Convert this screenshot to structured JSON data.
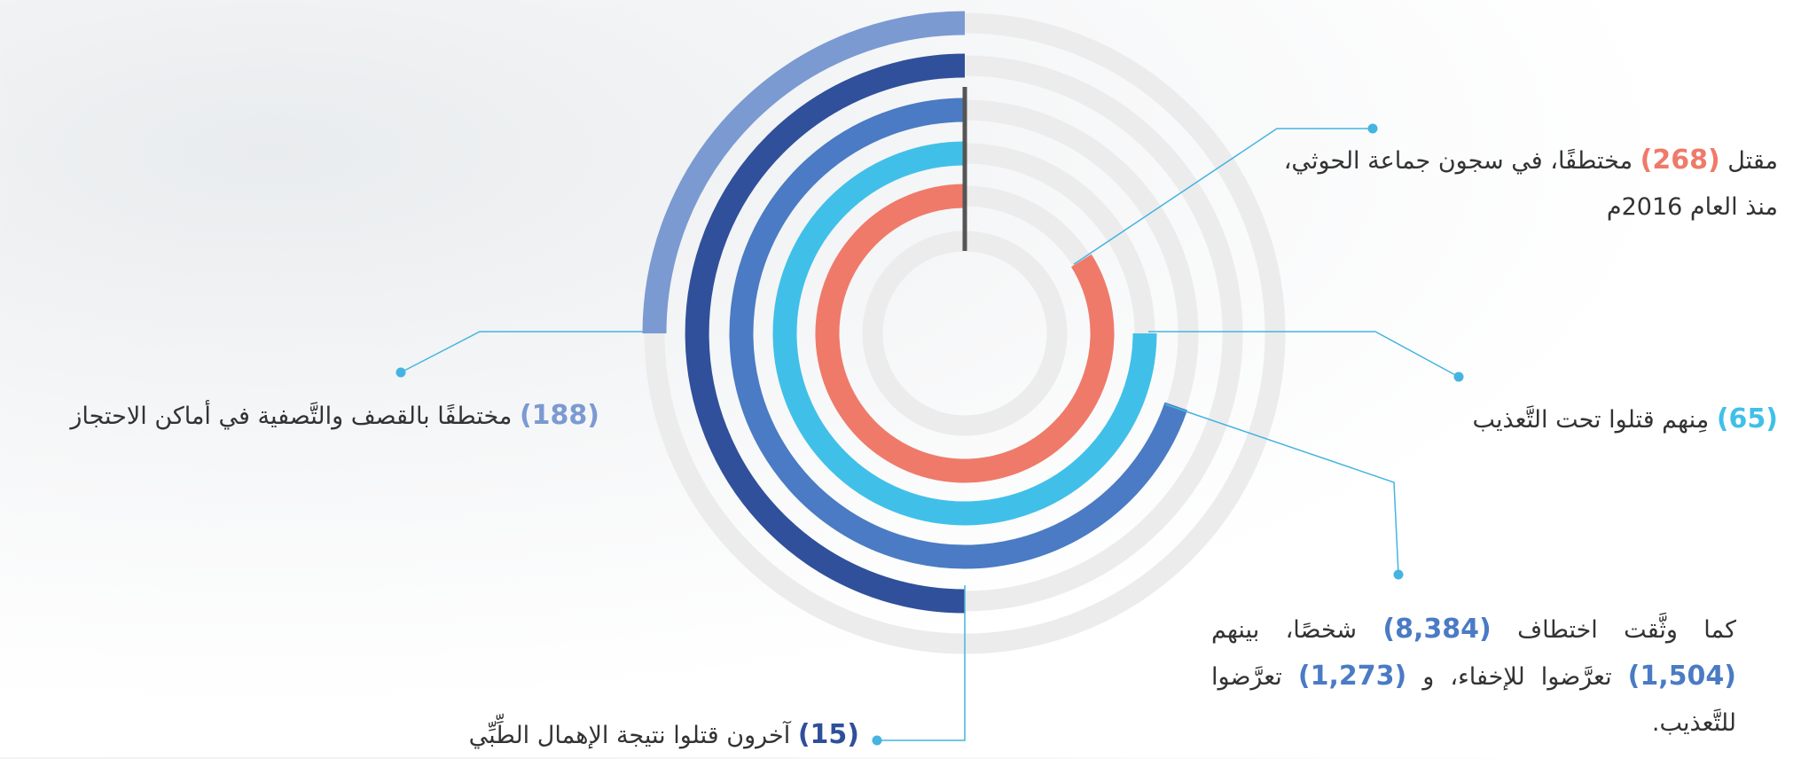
{
  "callouts": [
    {
      "parts": [
        "مقتل",
        "(268)",
        "مختطفًا، في سجون جماعة الحوثي، منذ العام 2016م"
      ]
    },
    {
      "parts": [
        "(65)",
        "مِنهم قتلوا تحت التَّعذيب"
      ]
    },
    {
      "parts": [
        "كما وثَّقت اختطاف",
        "(8,384)",
        "شخصًا، بينهم",
        "(1,504)",
        "تعرَّضوا للإخفاء، و",
        "(1,273)",
        "تعرَّضوا للتَّعذيب."
      ]
    },
    {
      "parts": [
        "(188)",
        "مختطفًا بالقصف والتَّصفية في أماكن الاحتجاز"
      ]
    },
    {
      "parts": [
        "(15)",
        "آخرون قتلوا نتيجة الإهمال الطِّبِّي"
      ]
    }
  ]
}
